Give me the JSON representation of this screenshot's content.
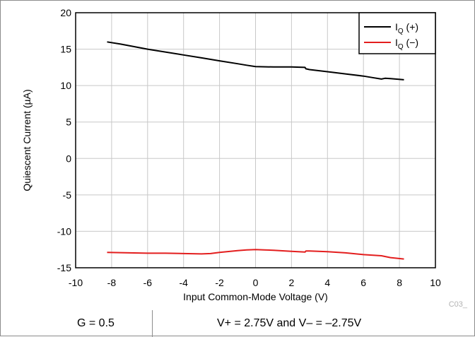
{
  "chart_data": {
    "type": "line",
    "xlabel": "Input Common-Mode Voltage (V)",
    "ylabel": "Quiescent Current (µA)",
    "xlim": [
      -10,
      10
    ],
    "ylim": [
      -15,
      20
    ],
    "xticks": [
      -10,
      -8,
      -6,
      -4,
      -2,
      0,
      2,
      4,
      6,
      8,
      10
    ],
    "yticks": [
      20,
      15,
      10,
      5,
      0,
      -5,
      -10,
      -15
    ],
    "grid": true,
    "legend_position": "top-right",
    "series": [
      {
        "name": "IQ (+)",
        "legend_main": "I",
        "legend_sub": "Q",
        "legend_suffix": " (+)",
        "color": "#000000",
        "x": [
          -8.25,
          -7.5,
          -6,
          -4,
          -3,
          -2,
          -1,
          -0.5,
          0,
          1,
          2,
          2.75,
          2.8,
          3,
          4,
          5,
          6,
          6.5,
          7,
          7.2,
          7.5,
          8.25
        ],
        "y": [
          16.0,
          15.7,
          15.0,
          14.2,
          13.8,
          13.4,
          13.0,
          12.8,
          12.6,
          12.55,
          12.55,
          12.5,
          12.3,
          12.2,
          11.9,
          11.6,
          11.3,
          11.1,
          10.9,
          11.0,
          10.95,
          10.8
        ]
      },
      {
        "name": "IQ (−)",
        "legend_main": "I",
        "legend_sub": "Q",
        "legend_suffix": " (−)",
        "color": "#e31e1e",
        "x": [
          -8.25,
          -7,
          -6,
          -5,
          -4,
          -3,
          -2.5,
          -2,
          -1,
          -0.5,
          0,
          0.5,
          1,
          2,
          2.75,
          2.8,
          3,
          4,
          5,
          6,
          7,
          7.5,
          8.25
        ],
        "y": [
          -12.9,
          -12.95,
          -13.0,
          -13.0,
          -13.05,
          -13.1,
          -13.05,
          -12.9,
          -12.65,
          -12.55,
          -12.5,
          -12.55,
          -12.6,
          -12.75,
          -12.85,
          -12.7,
          -12.7,
          -12.8,
          -12.95,
          -13.2,
          -13.35,
          -13.6,
          -13.8
        ]
      }
    ]
  },
  "figure_code": "C03_",
  "conditions": {
    "gain": "G = 0.5",
    "supply": "V+ = 2.75V and V– = –2.75V"
  }
}
